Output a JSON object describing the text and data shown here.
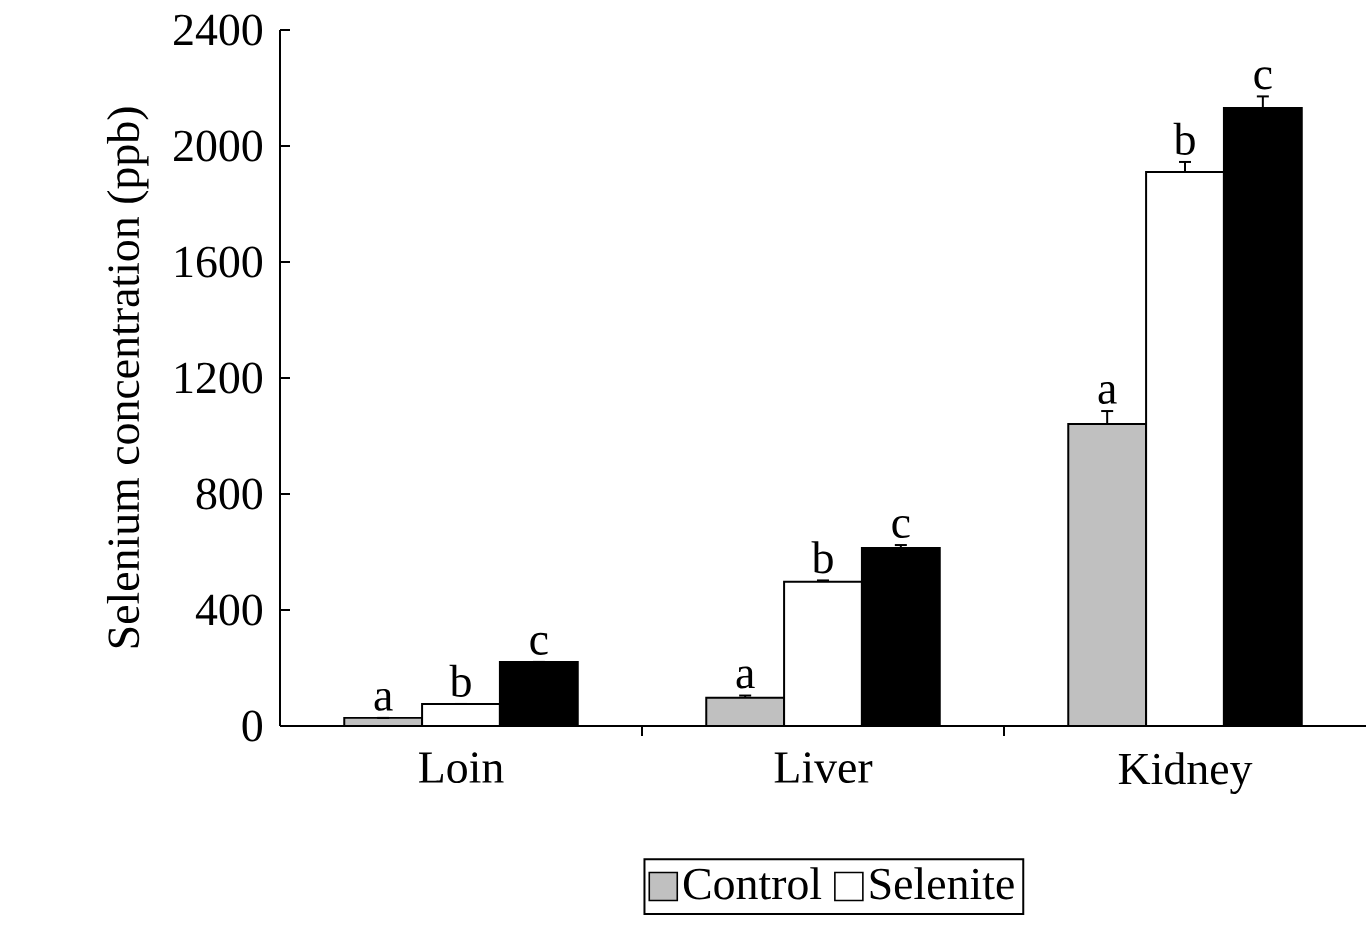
{
  "chart_data": {
    "type": "bar",
    "ylabel": "Selenium concentration (ppb)",
    "categories": [
      "Loin",
      "Liver",
      "Kidney"
    ],
    "series": [
      {
        "name": "Control",
        "color": "#c0c0c0",
        "values": [
          28,
          97,
          1041
        ],
        "errors": [
          null,
          8,
          45
        ],
        "value_labels": [
          "a",
          "a",
          "a"
        ]
      },
      {
        "name": "Selenite",
        "color": "#ffffff",
        "values": [
          76,
          497,
          1910
        ],
        "errors": [
          null,
          5,
          35
        ],
        "value_labels": [
          "b",
          "b",
          "b"
        ]
      },
      {
        "color": "#000000",
        "values": [
          221,
          614,
          2131
        ],
        "errors": [
          null,
          10,
          40
        ],
        "value_labels": [
          "c",
          "c",
          "c"
        ]
      }
    ],
    "ylim": [
      0,
      2400
    ],
    "yticks": [
      0,
      400,
      800,
      1200,
      1600,
      2000,
      2400
    ],
    "legend": "bottom"
  }
}
